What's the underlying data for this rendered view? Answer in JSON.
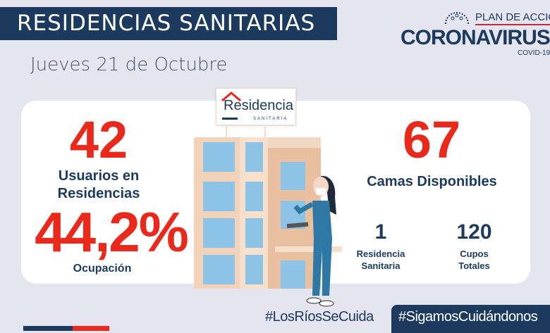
{
  "header": {
    "title": "RESIDENCIAS SANITARIAS",
    "date": "Jueves 21 de Octubre"
  },
  "logo": {
    "line1": "PLAN DE ACCIÓN",
    "line2": "CORONAVIRUS",
    "line3": "COVID-19"
  },
  "sign": {
    "name": "Residencia",
    "subtitle": "SANITARIA"
  },
  "stats": {
    "usuarios_value": "42",
    "usuarios_label_1": "Usuarios en",
    "usuarios_label_2": "Residencias",
    "ocupacion_value": "44,2%",
    "ocupacion_label": "Ocupación",
    "camas_value": "67",
    "camas_label": "Camas Disponibles",
    "residencias_value": "1",
    "residencias_label_1": "Residencia",
    "residencias_label_2": "Sanitaria",
    "cupos_value": "120",
    "cupos_label_1": "Cupos",
    "cupos_label_2": "Totales"
  },
  "footer": {
    "hashtag_1": "#LosRíosSeCuida",
    "hashtag_2": "#SigamosCuidándonos"
  },
  "colors": {
    "navy": "#1c3a5e",
    "red": "#e8291c",
    "background": "#e4e5ee"
  }
}
